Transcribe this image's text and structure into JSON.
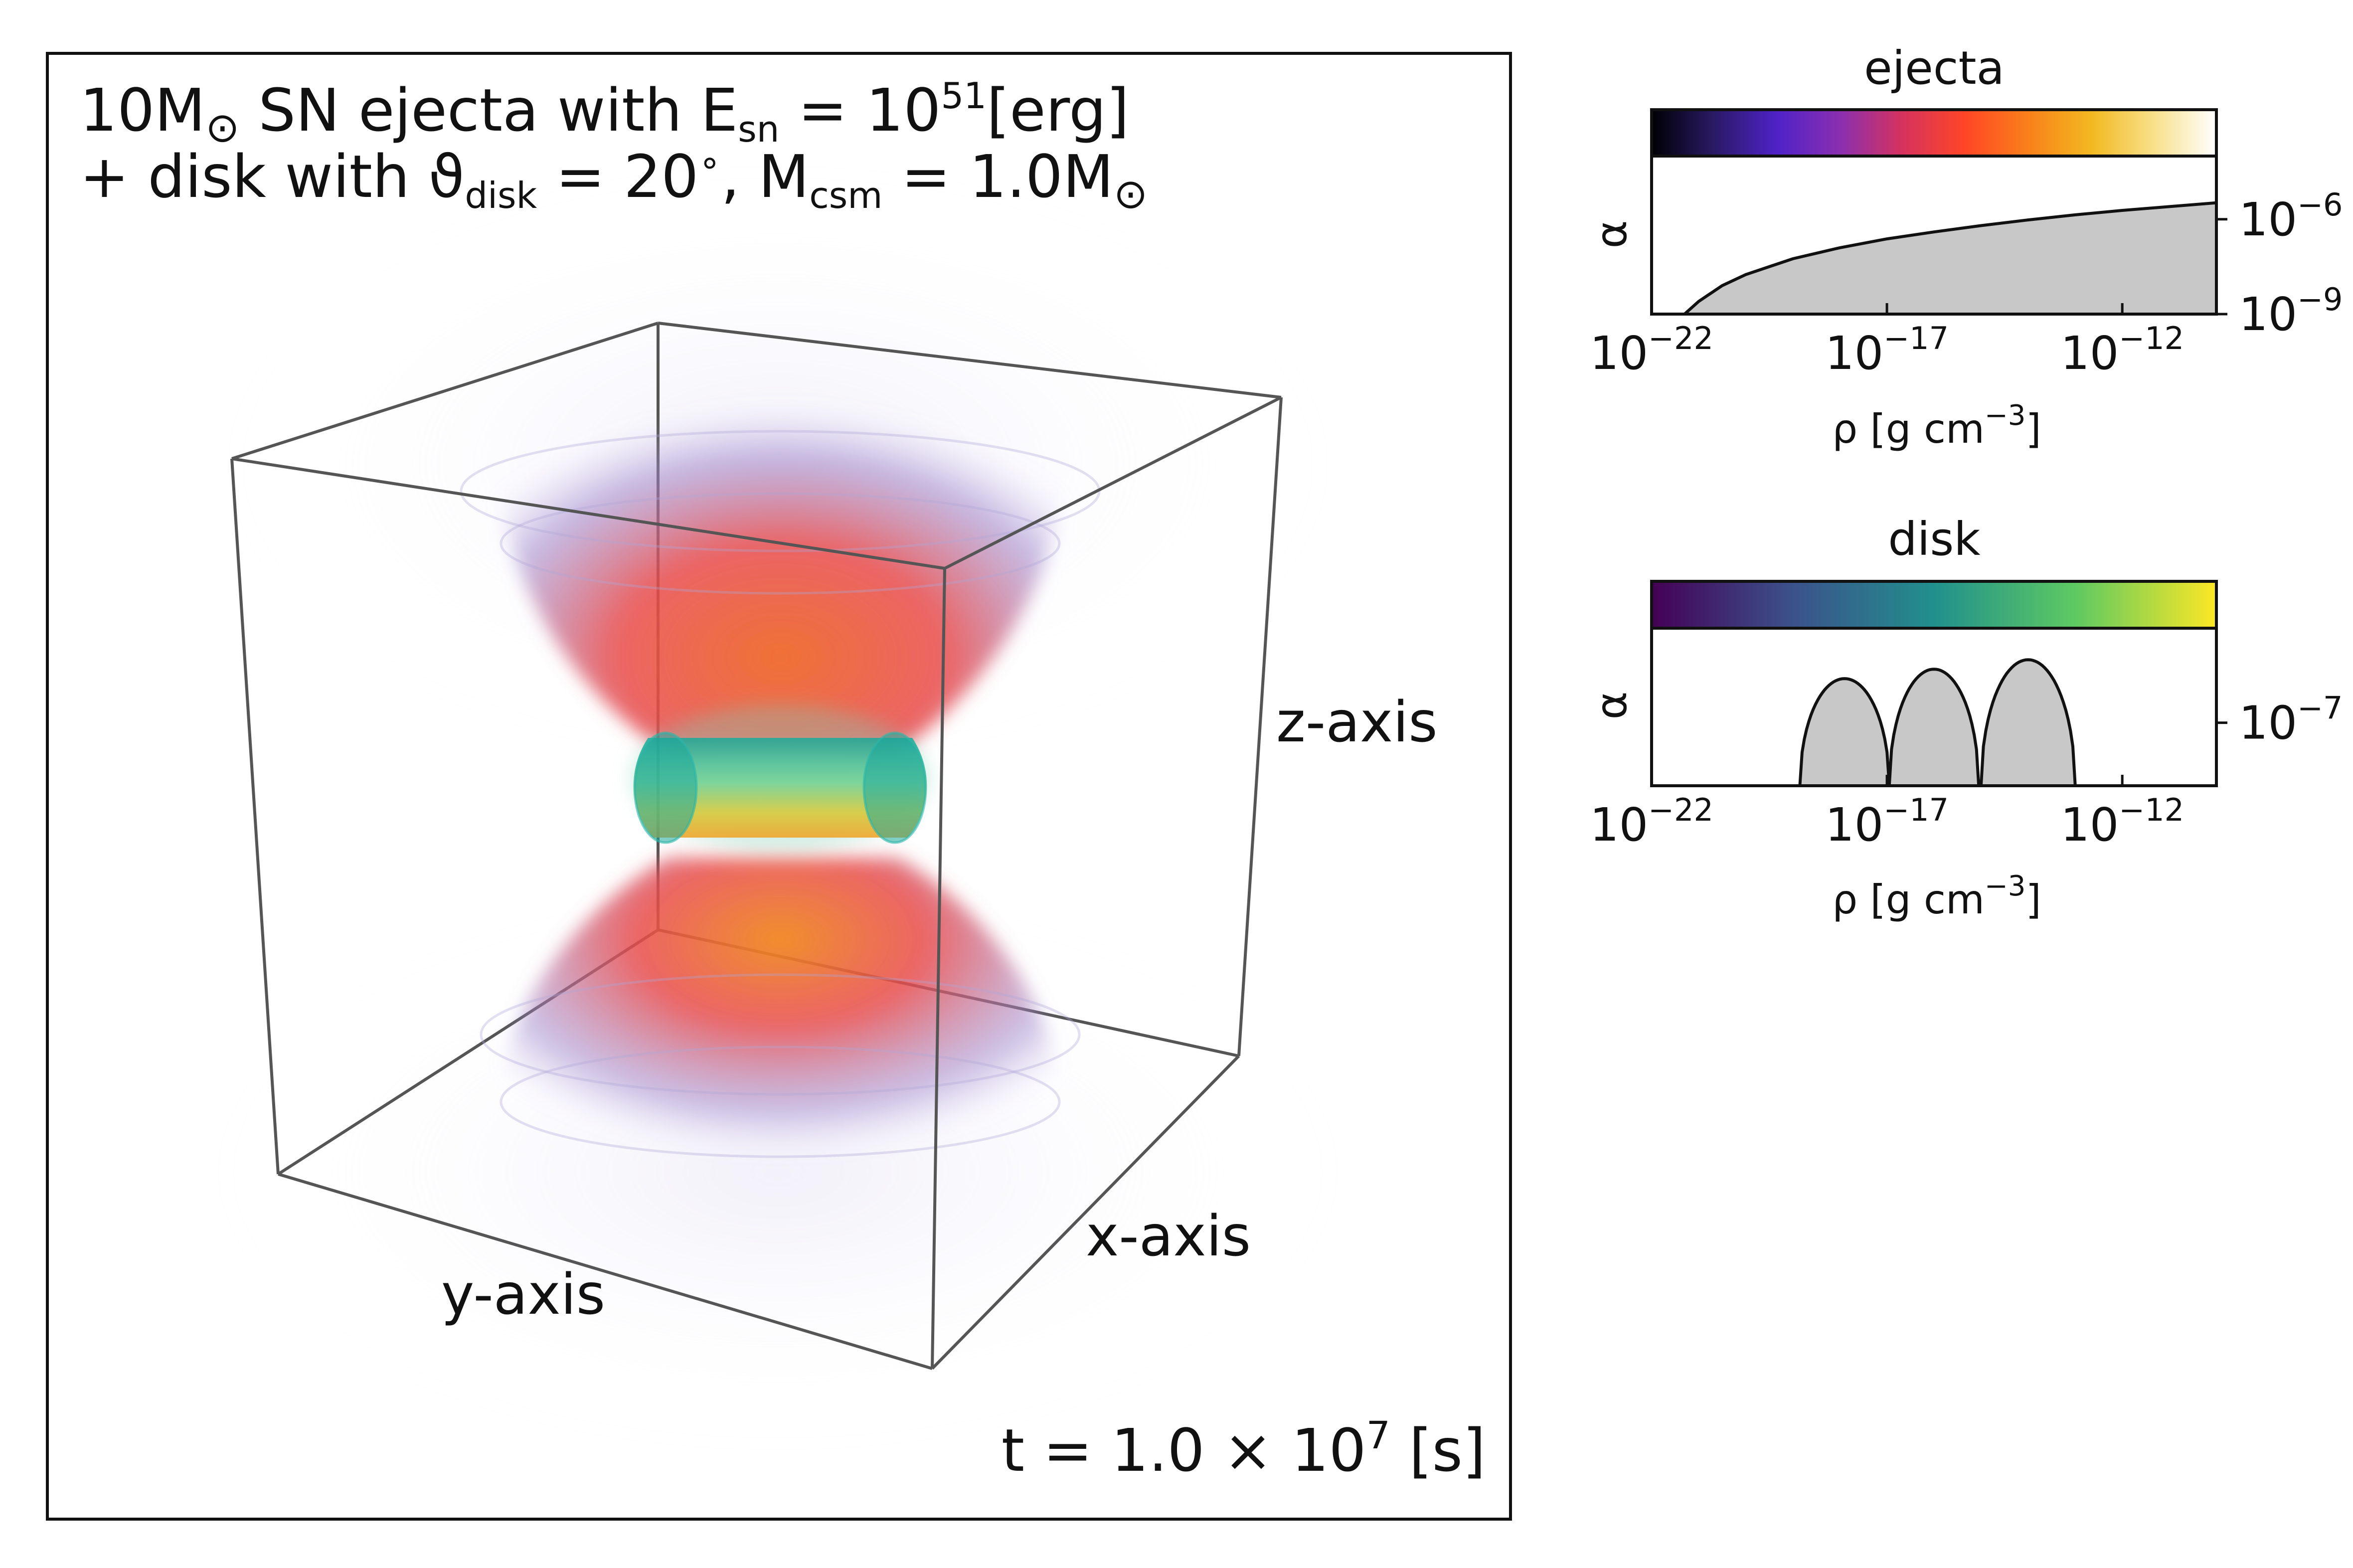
{
  "render": {
    "title_line1": {
      "prefix": "10M",
      "sun": "⊙",
      "mid": " SN ejecta with E",
      "sub": "sn",
      "eq": " = 10",
      "sup": "51",
      "tail": "[erg]"
    },
    "title_line2": {
      "a": "+ disk with ϑ",
      "sub1": "disk",
      "b": " = 20",
      "deg": "∘",
      "c": ", M",
      "sub2": "csm",
      "d": " = 1.0M",
      "sun": "⊙"
    },
    "time_label": {
      "a": "t = 1.0 × 10",
      "sup": "7",
      "b": " [s]"
    },
    "axis_labels": {
      "x": "x-axis",
      "y": "y-axis",
      "z": "z-axis"
    }
  },
  "colors": {
    "frame": "#111111",
    "cube_edges": "#555555",
    "fill_gray": "#c8c8c8",
    "ejecta_cmap": [
      "#000004",
      "#2a1a66",
      "#4f22c8",
      "#8a2fb0",
      "#d6325e",
      "#ff4626",
      "#f9801a",
      "#f2b820",
      "#f8e08a",
      "#ffffff"
    ],
    "disk_cmap": [
      "#440154",
      "#3b528b",
      "#21908d",
      "#5dc962",
      "#fde725"
    ],
    "ejecta_plume": [
      "#e84a4a",
      "#f06a2a",
      "#9d86cc"
    ],
    "disk_core": [
      "#1aa89a",
      "#6fcf8e",
      "#e8c830"
    ]
  },
  "chart_data": [
    {
      "type": "area",
      "title": "ejecta",
      "colormap": "CMRmap",
      "xlabel": "ρ [g cm",
      "xlabel_sup": "−3",
      "xlabel_tail": "]",
      "ylabel": "α",
      "xscale": "log",
      "yscale": "log",
      "xlim": [
        -22,
        -10
      ],
      "ylim": [
        -9,
        -4
      ],
      "x_ticks": [
        {
          "base": "10",
          "exp": "−22",
          "v": -22
        },
        {
          "base": "10",
          "exp": "−17",
          "v": -17
        },
        {
          "base": "10",
          "exp": "−12",
          "v": -12
        }
      ],
      "y_ticks": [
        {
          "base": "10",
          "exp": "−6",
          "v": -6
        },
        {
          "base": "10",
          "exp": "−9",
          "v": -9
        }
      ],
      "x": [
        -21.3,
        -21.0,
        -20.5,
        -20.0,
        -19.0,
        -18.0,
        -17.0,
        -16.0,
        -15.0,
        -14.0,
        -13.0,
        -12.0,
        -11.0,
        -10.0
      ],
      "y": [
        -9.0,
        -8.6,
        -8.1,
        -7.75,
        -7.25,
        -6.9,
        -6.62,
        -6.4,
        -6.2,
        -6.02,
        -5.86,
        -5.72,
        -5.6,
        -5.48
      ]
    },
    {
      "type": "area",
      "title": "disk",
      "colormap": "viridis",
      "xlabel": "ρ [g cm",
      "xlabel_sup": "−3",
      "xlabel_tail": "]",
      "ylabel": "α",
      "xscale": "log",
      "yscale": "log",
      "xlim": [
        -22,
        -10
      ],
      "ylim": [
        -9,
        -4
      ],
      "x_ticks": [
        {
          "base": "10",
          "exp": "−22",
          "v": -22
        },
        {
          "base": "10",
          "exp": "−17",
          "v": -17
        },
        {
          "base": "10",
          "exp": "−12",
          "v": -12
        }
      ],
      "y_ticks": [
        {
          "base": "10",
          "exp": "−7",
          "v": -7
        }
      ],
      "peaks": [
        {
          "center": -17.9,
          "half_width": 0.95,
          "height": -5.6
        },
        {
          "center": -16.0,
          "half_width": 0.95,
          "height": -5.3
        },
        {
          "center": -14.0,
          "half_width": 1.0,
          "height": -5.0
        }
      ]
    }
  ]
}
